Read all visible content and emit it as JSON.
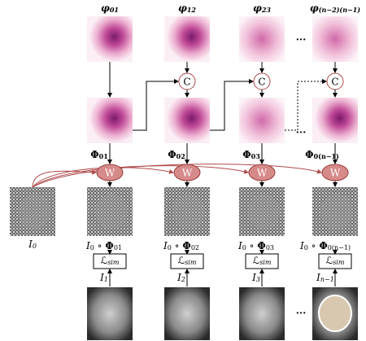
{
  "flows": [
    {
      "base": "φ",
      "sub": "01"
    },
    {
      "base": "φ",
      "sub": "12"
    },
    {
      "base": "φ",
      "sub": "23"
    },
    {
      "base": "φ",
      "sub": "(n−2)(n−1)"
    }
  ],
  "compose_nodes": [
    "C",
    "C",
    "C"
  ],
  "accumulated": [
    {
      "base": "Φ",
      "sub": "01"
    },
    {
      "base": "Φ",
      "sub": "02"
    },
    {
      "base": "Φ",
      "sub": "03"
    },
    {
      "base": "Φ",
      "sub": "0(n−1)"
    }
  ],
  "warp_nodes": [
    "W",
    "W",
    "W",
    "W"
  ],
  "reference": {
    "base": "I",
    "sub": "0"
  },
  "warped": [
    {
      "left": "I",
      "left_sub": "0",
      "op": " ∘ ",
      "right": "Φ",
      "right_sub": "01"
    },
    {
      "left": "I",
      "left_sub": "0",
      "op": " ∘ ",
      "right": "Φ",
      "right_sub": "02"
    },
    {
      "left": "I",
      "left_sub": "0",
      "op": " ∘ ",
      "right": "Φ",
      "right_sub": "03"
    },
    {
      "left": "I",
      "left_sub": "0",
      "op": " ∘ ",
      "right": "Φ",
      "right_sub": "0(n−1)"
    }
  ],
  "loss": [
    {
      "base": "ℒ",
      "sub": "sim"
    },
    {
      "base": "ℒ",
      "sub": "sim"
    },
    {
      "base": "ℒ",
      "sub": "sim"
    },
    {
      "base": "ℒ",
      "sub": "sim"
    }
  ],
  "targets": [
    {
      "base": "I",
      "sub": "1"
    },
    {
      "base": "I",
      "sub": "2"
    },
    {
      "base": "I",
      "sub": "3"
    },
    {
      "base": "I",
      "sub": "n−1"
    }
  ],
  "ellipsis": [
    "...",
    "...",
    "..."
  ]
}
